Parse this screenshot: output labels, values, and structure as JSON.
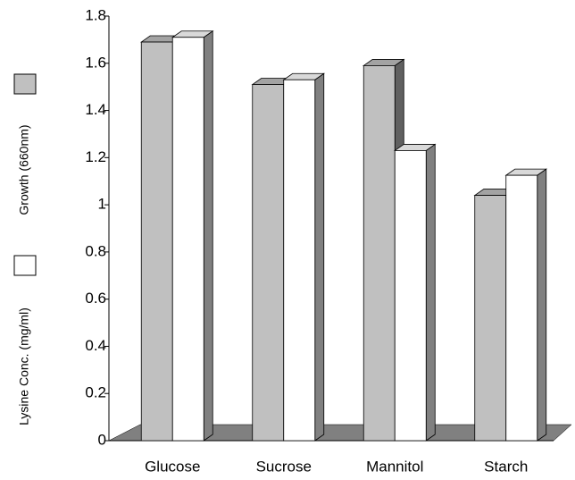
{
  "chart_data": {
    "type": "bar3d",
    "y_label_parts": [
      "Lysine Conc. (mg/ml)",
      "Growth (660nm)"
    ],
    "categories": [
      "Glucose",
      "Sucrose",
      "Mannitol",
      "Starch"
    ],
    "series": [
      {
        "color": "#c0c0c0",
        "values": [
          1.69,
          1.51,
          1.59,
          1.04
        ]
      },
      {
        "color": "#ffffff",
        "values": [
          1.71,
          1.53,
          1.23,
          1.125
        ]
      }
    ],
    "ylim": [
      0,
      1.8
    ],
    "yticks": [
      0,
      0.2,
      0.4,
      0.6,
      0.8,
      1,
      1.2,
      1.4,
      1.6,
      1.8
    ],
    "floor_color": "#808080"
  }
}
